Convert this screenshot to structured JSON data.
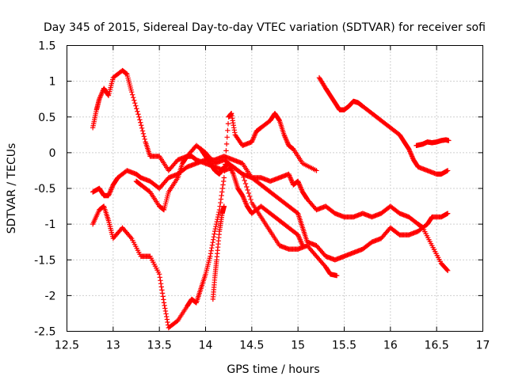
{
  "chart_data": {
    "type": "scatter",
    "title": "Day 345 of 2015, Sidereal Day-to-day VTEC variation (SDTVAR) for receiver sofi",
    "xlabel": "GPS time / hours",
    "ylabel": "SDTVAR / TECUs",
    "xlim": [
      12.5,
      17
    ],
    "ylim": [
      -2.5,
      1.5
    ],
    "x_ticks": [
      "12.5",
      "13",
      "13.5",
      "14",
      "14.5",
      "15",
      "15.5",
      "16",
      "16.5",
      "17"
    ],
    "y_ticks": [
      "-2.5",
      "-2",
      "-1.5",
      "-1",
      "-0.5",
      "0",
      "0.5",
      "1",
      "1.5"
    ],
    "marker": "+",
    "grid": true,
    "color": "#ff0000",
    "series": [
      {
        "name": "track-1",
        "points": [
          [
            12.78,
            0.35
          ],
          [
            12.82,
            0.6
          ],
          [
            12.85,
            0.75
          ],
          [
            12.9,
            0.9
          ],
          [
            12.95,
            0.8
          ],
          [
            13.0,
            1.05
          ],
          [
            13.1,
            1.15
          ],
          [
            13.15,
            1.1
          ],
          [
            13.2,
            0.85
          ],
          [
            13.28,
            0.5
          ],
          [
            13.35,
            0.15
          ],
          [
            13.4,
            -0.05
          ],
          [
            13.5,
            -0.05
          ],
          [
            13.6,
            -0.25
          ],
          [
            13.7,
            -0.1
          ],
          [
            13.8,
            -0.05
          ],
          [
            13.9,
            0.1
          ],
          [
            14.0,
            0.0
          ],
          [
            14.1,
            -0.15
          ],
          [
            14.2,
            -0.1
          ],
          [
            14.3,
            -0.2
          ],
          [
            14.4,
            -0.3
          ],
          [
            14.5,
            -0.35
          ],
          [
            14.6,
            -0.35
          ],
          [
            14.7,
            -0.4
          ],
          [
            14.8,
            -0.35
          ],
          [
            14.9,
            -0.3
          ],
          [
            14.95,
            -0.45
          ],
          [
            15.0,
            -0.4
          ],
          [
            15.05,
            -0.55
          ],
          [
            15.1,
            -0.65
          ],
          [
            15.2,
            -0.8
          ],
          [
            15.3,
            -0.75
          ],
          [
            15.4,
            -0.85
          ],
          [
            15.5,
            -0.9
          ],
          [
            15.6,
            -0.9
          ],
          [
            15.7,
            -0.85
          ],
          [
            15.8,
            -0.9
          ],
          [
            15.9,
            -0.85
          ],
          [
            16.0,
            -0.75
          ],
          [
            16.1,
            -0.85
          ],
          [
            16.2,
            -0.9
          ],
          [
            16.3,
            -1.0
          ],
          [
            16.35,
            -1.05
          ],
          [
            16.45,
            -1.3
          ],
          [
            16.55,
            -1.55
          ],
          [
            16.62,
            -1.65
          ]
        ]
      },
      {
        "name": "track-2",
        "points": [
          [
            12.78,
            -0.55
          ],
          [
            12.85,
            -0.5
          ],
          [
            12.9,
            -0.6
          ],
          [
            12.95,
            -0.6
          ],
          [
            13.0,
            -0.45
          ],
          [
            13.05,
            -0.35
          ],
          [
            13.15,
            -0.25
          ],
          [
            13.25,
            -0.3
          ],
          [
            13.3,
            -0.35
          ],
          [
            13.4,
            -0.4
          ],
          [
            13.5,
            -0.5
          ],
          [
            13.6,
            -0.35
          ],
          [
            13.7,
            -0.3
          ],
          [
            13.8,
            -0.2
          ],
          [
            13.9,
            -0.15
          ],
          [
            14.0,
            -0.1
          ],
          [
            14.1,
            -0.1
          ],
          [
            14.2,
            -0.05
          ],
          [
            14.3,
            -0.1
          ],
          [
            14.4,
            -0.15
          ],
          [
            14.5,
            -0.35
          ],
          [
            14.6,
            -0.45
          ],
          [
            14.7,
            -0.55
          ],
          [
            14.8,
            -0.65
          ],
          [
            14.9,
            -0.75
          ],
          [
            15.0,
            -0.85
          ],
          [
            15.05,
            -1.05
          ],
          [
            15.1,
            -1.25
          ],
          [
            15.2,
            -1.3
          ],
          [
            15.3,
            -1.45
          ],
          [
            15.4,
            -1.5
          ],
          [
            15.5,
            -1.45
          ],
          [
            15.6,
            -1.4
          ],
          [
            15.7,
            -1.35
          ],
          [
            15.8,
            -1.25
          ],
          [
            15.9,
            -1.2
          ],
          [
            16.0,
            -1.05
          ],
          [
            16.1,
            -1.15
          ],
          [
            16.2,
            -1.15
          ],
          [
            16.3,
            -1.1
          ],
          [
            16.4,
            -1.0
          ],
          [
            16.45,
            -0.9
          ],
          [
            16.55,
            -0.9
          ],
          [
            16.62,
            -0.85
          ]
        ]
      },
      {
        "name": "track-3",
        "points": [
          [
            12.78,
            -1.0
          ],
          [
            12.85,
            -0.8
          ],
          [
            12.9,
            -0.75
          ],
          [
            12.95,
            -0.95
          ],
          [
            13.0,
            -1.2
          ],
          [
            13.1,
            -1.05
          ],
          [
            13.2,
            -1.2
          ],
          [
            13.3,
            -1.45
          ],
          [
            13.4,
            -1.45
          ],
          [
            13.5,
            -1.7
          ],
          [
            13.55,
            -2.1
          ],
          [
            13.6,
            -2.45
          ],
          [
            13.7,
            -2.35
          ],
          [
            13.8,
            -2.15
          ],
          [
            13.85,
            -2.05
          ],
          [
            13.9,
            -2.1
          ],
          [
            13.95,
            -1.9
          ],
          [
            14.0,
            -1.7
          ],
          [
            14.05,
            -1.45
          ],
          [
            14.1,
            -1.1
          ],
          [
            14.15,
            -0.8
          ],
          [
            14.2,
            -0.35
          ],
          [
            14.25,
            0.5
          ],
          [
            14.28,
            0.55
          ],
          [
            14.32,
            0.25
          ],
          [
            14.4,
            0.1
          ],
          [
            14.5,
            0.15
          ],
          [
            14.55,
            0.3
          ],
          [
            14.6,
            0.35
          ],
          [
            14.7,
            0.45
          ],
          [
            14.75,
            0.55
          ],
          [
            14.8,
            0.45
          ],
          [
            14.85,
            0.25
          ],
          [
            14.9,
            0.1
          ],
          [
            14.95,
            0.05
          ],
          [
            15.05,
            -0.15
          ],
          [
            15.2,
            -0.25
          ]
        ]
      },
      {
        "name": "track-4",
        "points": [
          [
            13.25,
            -0.4
          ],
          [
            13.3,
            -0.45
          ],
          [
            13.4,
            -0.55
          ],
          [
            13.5,
            -0.75
          ],
          [
            13.55,
            -0.8
          ],
          [
            13.6,
            -0.55
          ],
          [
            13.7,
            -0.35
          ],
          [
            13.75,
            -0.15
          ],
          [
            13.8,
            -0.05
          ],
          [
            13.85,
            -0.05
          ],
          [
            13.9,
            -0.1
          ],
          [
            14.0,
            -0.15
          ],
          [
            14.1,
            -0.2
          ],
          [
            14.2,
            -0.25
          ],
          [
            14.3,
            -0.2
          ],
          [
            14.4,
            -0.3
          ],
          [
            14.5,
            -0.7
          ],
          [
            14.6,
            -0.9
          ],
          [
            14.7,
            -1.1
          ],
          [
            14.8,
            -1.3
          ],
          [
            14.9,
            -1.35
          ],
          [
            15.0,
            -1.35
          ],
          [
            15.1,
            -1.3
          ],
          [
            15.2,
            -1.45
          ],
          [
            15.3,
            -1.6
          ],
          [
            15.35,
            -1.7
          ],
          [
            15.42,
            -1.72
          ]
        ]
      },
      {
        "name": "track-5",
        "points": [
          [
            13.95,
            0.05
          ],
          [
            14.0,
            -0.05
          ],
          [
            14.05,
            -0.15
          ],
          [
            14.1,
            -0.25
          ],
          [
            14.15,
            -0.3
          ],
          [
            14.2,
            -0.2
          ],
          [
            14.25,
            -0.15
          ],
          [
            14.3,
            -0.3
          ],
          [
            14.35,
            -0.5
          ],
          [
            14.4,
            -0.6
          ],
          [
            14.45,
            -0.75
          ],
          [
            14.5,
            -0.85
          ],
          [
            14.6,
            -0.75
          ],
          [
            14.7,
            -0.85
          ],
          [
            14.8,
            -0.95
          ],
          [
            14.9,
            -1.05
          ],
          [
            15.0,
            -1.15
          ],
          [
            15.05,
            -1.3
          ]
        ]
      },
      {
        "name": "track-6",
        "points": [
          [
            15.23,
            1.05
          ],
          [
            15.3,
            0.9
          ],
          [
            15.35,
            0.8
          ],
          [
            15.4,
            0.7
          ],
          [
            15.45,
            0.6
          ],
          [
            15.5,
            0.6
          ],
          [
            15.55,
            0.65
          ],
          [
            15.6,
            0.72
          ],
          [
            15.65,
            0.7
          ],
          [
            15.7,
            0.65
          ],
          [
            15.8,
            0.55
          ],
          [
            15.9,
            0.45
          ],
          [
            16.0,
            0.35
          ],
          [
            16.1,
            0.25
          ],
          [
            16.15,
            0.15
          ],
          [
            16.2,
            0.05
          ],
          [
            16.25,
            -0.1
          ],
          [
            16.3,
            -0.2
          ],
          [
            16.4,
            -0.25
          ],
          [
            16.5,
            -0.3
          ],
          [
            16.55,
            -0.3
          ],
          [
            16.62,
            -0.25
          ]
        ]
      },
      {
        "name": "track-7",
        "points": [
          [
            16.28,
            0.1
          ],
          [
            16.35,
            0.12
          ],
          [
            16.4,
            0.15
          ],
          [
            16.45,
            0.14
          ],
          [
            16.5,
            0.15
          ],
          [
            16.55,
            0.17
          ],
          [
            16.6,
            0.18
          ],
          [
            16.63,
            0.17
          ]
        ]
      },
      {
        "name": "track-8",
        "points": [
          [
            14.08,
            -2.05
          ],
          [
            14.1,
            -1.75
          ],
          [
            14.12,
            -1.5
          ],
          [
            14.15,
            -1.1
          ],
          [
            14.18,
            -0.85
          ],
          [
            14.2,
            -0.75
          ]
        ]
      }
    ]
  }
}
